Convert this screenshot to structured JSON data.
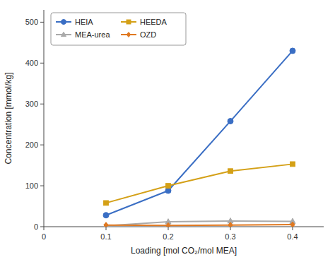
{
  "chart_data": {
    "type": "line",
    "xlabel": "Loading [mol CO₂/mol MEA]",
    "ylabel": "Concentration [mmol/kg]",
    "x": [
      0.1,
      0.2,
      0.3,
      0.4
    ],
    "series": [
      {
        "name": "HEIA",
        "color": "#3A6EC4",
        "marker": "circle",
        "values": [
          28,
          88,
          258,
          430
        ]
      },
      {
        "name": "HEEDA",
        "color": "#D4A017",
        "marker": "square",
        "values": [
          58,
          100,
          136,
          153
        ]
      },
      {
        "name": "MEA-urea",
        "color": "#AAAAAA",
        "marker": "triangle",
        "values": [
          2,
          12,
          14,
          13
        ]
      },
      {
        "name": "OZD",
        "color": "#E07820",
        "marker": "diamond",
        "values": [
          4,
          3,
          4,
          5
        ]
      }
    ],
    "xlim": [
      0,
      0.45
    ],
    "ylim": [
      0,
      530
    ],
    "xticks": [
      0,
      0.1,
      0.2,
      0.3,
      0.4
    ],
    "yticks": [
      0,
      100,
      200,
      300,
      400,
      500
    ],
    "grid": false,
    "legend": "upper left"
  }
}
